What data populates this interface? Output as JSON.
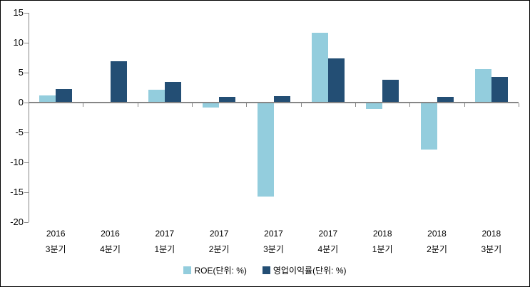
{
  "chart": {
    "background_color": "#FFFFFF",
    "border_color": "#000000",
    "axis_color": "#868686",
    "text_color": "#000000"
  },
  "chart_data": {
    "type": "bar",
    "title": "",
    "xlabel": "",
    "ylabel": "",
    "categories": [
      {
        "line1": "2016",
        "line2": "3분기"
      },
      {
        "line1": "2016",
        "line2": "4분기"
      },
      {
        "line1": "2017",
        "line2": "1분기"
      },
      {
        "line1": "2017",
        "line2": "2분기"
      },
      {
        "line1": "2017",
        "line2": "3분기"
      },
      {
        "line1": "2017",
        "line2": "4분기"
      },
      {
        "line1": "2018",
        "line2": "1분기"
      },
      {
        "line1": "2018",
        "line2": "2분기"
      },
      {
        "line1": "2018",
        "line2": "3분기"
      }
    ],
    "series": [
      {
        "name": "ROE(단위: %)",
        "color": "#93CDDD",
        "values": [
          1.2,
          0,
          2.1,
          -0.8,
          -15.7,
          11.7,
          -1.1,
          -7.9,
          5.6
        ]
      },
      {
        "name": "영업이익률(단위: %)",
        "color": "#234E74",
        "values": [
          2.3,
          6.9,
          3.5,
          1.0,
          1.1,
          7.4,
          3.8,
          0.9,
          4.3
        ]
      }
    ],
    "y_ticks": [
      15,
      10,
      5,
      0,
      -5,
      -10,
      -15,
      -20
    ],
    "ylim": [
      -20,
      15
    ],
    "grid": false,
    "legend_position": "bottom"
  }
}
